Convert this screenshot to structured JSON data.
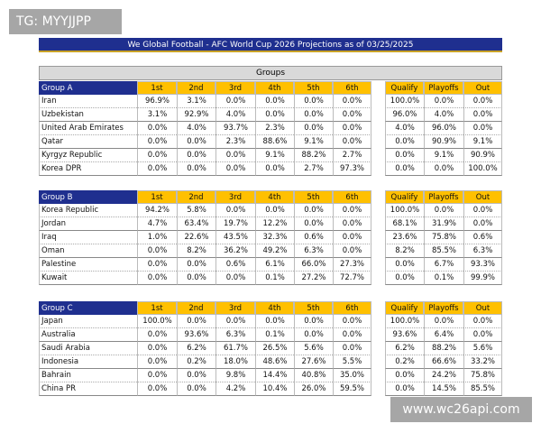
{
  "watermark_top": "TG: MYYJJPP",
  "title": "We Global Football - AFC World Cup 2026 Projections as of 03/25/2025",
  "section_label": "Groups",
  "watermark_bottom": "www.wc26api.com",
  "groups": [
    {
      "name": "Group A",
      "columns": [
        "1st",
        "2nd",
        "3rd",
        "4th",
        "5th",
        "6th"
      ],
      "outcome_columns": [
        "Qualify",
        "Playoffs",
        "Out"
      ],
      "rows": [
        {
          "team": "Iran",
          "positions": [
            "96.9%",
            "3.1%",
            "0.0%",
            "0.0%",
            "0.0%",
            "0.0%"
          ],
          "outcomes": [
            "100.0%",
            "0.0%",
            "0.0%"
          ]
        },
        {
          "team": "Uzbekistan",
          "positions": [
            "3.1%",
            "92.9%",
            "4.0%",
            "0.0%",
            "0.0%",
            "0.0%"
          ],
          "outcomes": [
            "96.0%",
            "4.0%",
            "0.0%"
          ]
        },
        {
          "team": "United Arab Emirates",
          "positions": [
            "0.0%",
            "4.0%",
            "93.7%",
            "2.3%",
            "0.0%",
            "0.0%"
          ],
          "outcomes": [
            "4.0%",
            "96.0%",
            "0.0%"
          ]
        },
        {
          "team": "Qatar",
          "positions": [
            "0.0%",
            "0.0%",
            "2.3%",
            "88.6%",
            "9.1%",
            "0.0%"
          ],
          "outcomes": [
            "0.0%",
            "90.9%",
            "9.1%"
          ]
        },
        {
          "team": "Kyrgyz Republic",
          "positions": [
            "0.0%",
            "0.0%",
            "0.0%",
            "9.1%",
            "88.2%",
            "2.7%"
          ],
          "outcomes": [
            "0.0%",
            "9.1%",
            "90.9%"
          ]
        },
        {
          "team": "Korea DPR",
          "positions": [
            "0.0%",
            "0.0%",
            "0.0%",
            "0.0%",
            "2.7%",
            "97.3%"
          ],
          "outcomes": [
            "0.0%",
            "0.0%",
            "100.0%"
          ]
        }
      ]
    },
    {
      "name": "Group B",
      "columns": [
        "1st",
        "2nd",
        "3rd",
        "4th",
        "5th",
        "6th"
      ],
      "outcome_columns": [
        "Qualify",
        "Playoffs",
        "Out"
      ],
      "rows": [
        {
          "team": "Korea Republic",
          "positions": [
            "94.2%",
            "5.8%",
            "0.0%",
            "0.0%",
            "0.0%",
            "0.0%"
          ],
          "outcomes": [
            "100.0%",
            "0.0%",
            "0.0%"
          ]
        },
        {
          "team": "Jordan",
          "positions": [
            "4.7%",
            "63.4%",
            "19.7%",
            "12.2%",
            "0.0%",
            "0.0%"
          ],
          "outcomes": [
            "68.1%",
            "31.9%",
            "0.0%"
          ]
        },
        {
          "team": "Iraq",
          "positions": [
            "1.0%",
            "22.6%",
            "43.5%",
            "32.3%",
            "0.6%",
            "0.0%"
          ],
          "outcomes": [
            "23.6%",
            "75.8%",
            "0.6%"
          ]
        },
        {
          "team": "Oman",
          "positions": [
            "0.0%",
            "8.2%",
            "36.2%",
            "49.2%",
            "6.3%",
            "0.0%"
          ],
          "outcomes": [
            "8.2%",
            "85.5%",
            "6.3%"
          ]
        },
        {
          "team": "Palestine",
          "positions": [
            "0.0%",
            "0.0%",
            "0.6%",
            "6.1%",
            "66.0%",
            "27.3%"
          ],
          "outcomes": [
            "0.0%",
            "6.7%",
            "93.3%"
          ]
        },
        {
          "team": "Kuwait",
          "positions": [
            "0.0%",
            "0.0%",
            "0.0%",
            "0.1%",
            "27.2%",
            "72.7%"
          ],
          "outcomes": [
            "0.0%",
            "0.1%",
            "99.9%"
          ]
        }
      ]
    },
    {
      "name": "Group C",
      "columns": [
        "1st",
        "2nd",
        "3rd",
        "4th",
        "5th",
        "6th"
      ],
      "outcome_columns": [
        "Qualify",
        "Playoffs",
        "Out"
      ],
      "rows": [
        {
          "team": "Japan",
          "positions": [
            "100.0%",
            "0.0%",
            "0.0%",
            "0.0%",
            "0.0%",
            "0.0%"
          ],
          "outcomes": [
            "100.0%",
            "0.0%",
            "0.0%"
          ]
        },
        {
          "team": "Australia",
          "positions": [
            "0.0%",
            "93.6%",
            "6.3%",
            "0.1%",
            "0.0%",
            "0.0%"
          ],
          "outcomes": [
            "93.6%",
            "6.4%",
            "0.0%"
          ]
        },
        {
          "team": "Saudi Arabia",
          "positions": [
            "0.0%",
            "6.2%",
            "61.7%",
            "26.5%",
            "5.6%",
            "0.0%"
          ],
          "outcomes": [
            "6.2%",
            "88.2%",
            "5.6%"
          ]
        },
        {
          "team": "Indonesia",
          "positions": [
            "0.0%",
            "0.2%",
            "18.0%",
            "48.6%",
            "27.6%",
            "5.5%"
          ],
          "outcomes": [
            "0.2%",
            "66.6%",
            "33.2%"
          ]
        },
        {
          "team": "Bahrain",
          "positions": [
            "0.0%",
            "0.0%",
            "9.8%",
            "14.4%",
            "40.8%",
            "35.0%"
          ],
          "outcomes": [
            "0.0%",
            "24.2%",
            "75.8%"
          ]
        },
        {
          "team": "China PR",
          "positions": [
            "0.0%",
            "0.0%",
            "4.2%",
            "10.4%",
            "26.0%",
            "59.5%"
          ],
          "outcomes": [
            "0.0%",
            "14.5%",
            "85.5%"
          ]
        }
      ]
    }
  ]
}
